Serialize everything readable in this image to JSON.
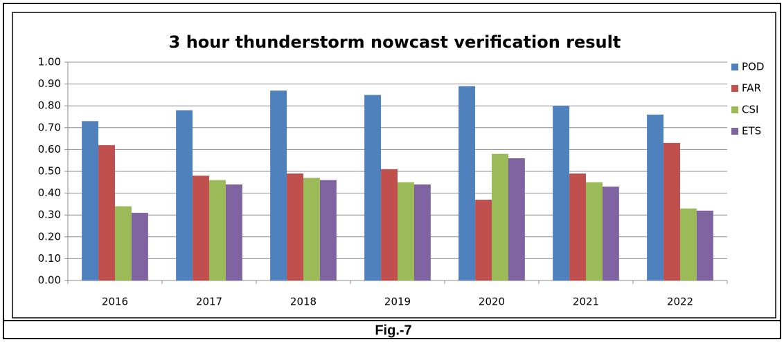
{
  "chart_data": {
    "type": "bar",
    "title": "3 hour thunderstorm nowcast verification result",
    "categories": [
      "2016",
      "2017",
      "2018",
      "2019",
      "2020",
      "2021",
      "2022"
    ],
    "series": [
      {
        "name": "POD",
        "color": "#4f81bd",
        "values": [
          0.73,
          0.78,
          0.87,
          0.85,
          0.89,
          0.8,
          0.76
        ]
      },
      {
        "name": "FAR",
        "color": "#c0504d",
        "values": [
          0.62,
          0.48,
          0.49,
          0.51,
          0.37,
          0.49,
          0.63
        ]
      },
      {
        "name": "CSI",
        "color": "#9bbb59",
        "values": [
          0.34,
          0.46,
          0.47,
          0.45,
          0.58,
          0.45,
          0.33
        ]
      },
      {
        "name": "ETS",
        "color": "#8064a2",
        "values": [
          0.31,
          0.44,
          0.46,
          0.44,
          0.56,
          0.43,
          0.32
        ]
      }
    ],
    "ylim": [
      0,
      1
    ],
    "yticks": [
      {
        "value": 0,
        "label": "0.00"
      },
      {
        "value": 0.1,
        "label": "0.10"
      },
      {
        "value": 0.2,
        "label": "0.20"
      },
      {
        "value": 0.3,
        "label": "0.30"
      },
      {
        "value": 0.4,
        "label": "0.40"
      },
      {
        "value": 0.5,
        "label": "0.50"
      },
      {
        "value": 0.6,
        "label": "0.60"
      },
      {
        "value": 0.7,
        "label": "0.70"
      },
      {
        "value": 0.8,
        "label": "0.80"
      },
      {
        "value": 0.9,
        "label": "0.90"
      },
      {
        "value": 1,
        "label": "1.00"
      }
    ],
    "grid": true,
    "legend": "right"
  },
  "figure_label": "Fig.-7"
}
